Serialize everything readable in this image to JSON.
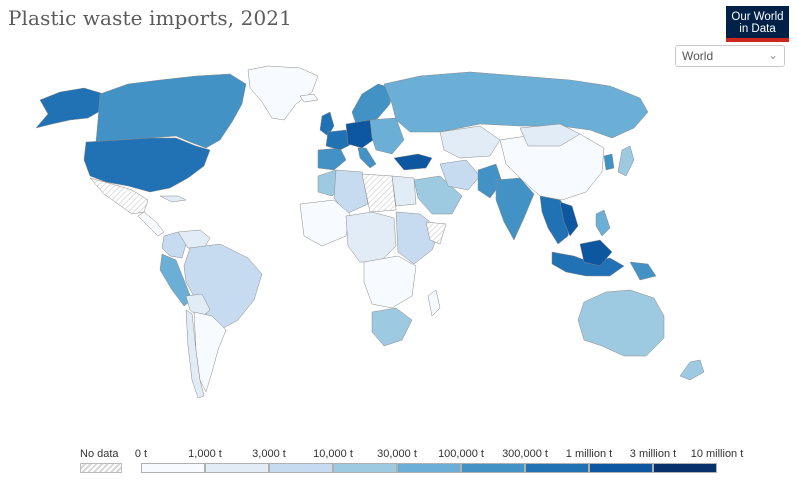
{
  "header": {
    "title": "Plastic waste imports, 2021",
    "logo_line1": "Our World",
    "logo_line2": "in Data"
  },
  "region_select": {
    "value": "World"
  },
  "legend": {
    "no_data_label": "No data",
    "bins": [
      {
        "label": "0 t",
        "color": "#f7fbff"
      },
      {
        "label": "1,000 t",
        "color": "#e1ecf7"
      },
      {
        "label": "3,000 t",
        "color": "#c6dbef"
      },
      {
        "label": "10,000 t",
        "color": "#9ecae1"
      },
      {
        "label": "30,000 t",
        "color": "#6baed6"
      },
      {
        "label": "100,000 t",
        "color": "#4292c6"
      },
      {
        "label": "300,000 t",
        "color": "#2171b5"
      },
      {
        "label": "1 million t",
        "color": "#0d56a0"
      },
      {
        "label": "3 million t",
        "color": "#08306b"
      }
    ],
    "last_label": "10 million t"
  },
  "colors": {
    "brand": "#002147",
    "accent_bar": "#ce261e"
  }
}
